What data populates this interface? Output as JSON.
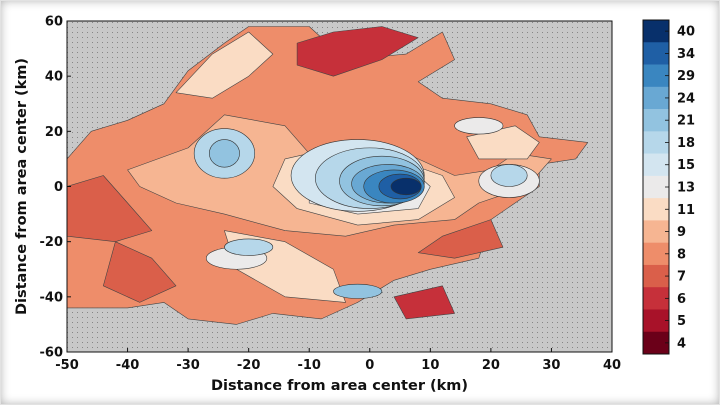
{
  "chart_data": {
    "type": "heatmap",
    "subtype": "filled-contour",
    "title": "",
    "xlabel": "Distance from area center (km)",
    "ylabel": "Distance from area center (km)",
    "xlim": [
      -50,
      40
    ],
    "ylim": [
      -60,
      60
    ],
    "x_ticks": [
      "-50",
      "-40",
      "-30",
      "-20",
      "-10",
      "0",
      "10",
      "20",
      "30",
      "40"
    ],
    "y_ticks": [
      "60",
      "40",
      "20",
      "0",
      "-20",
      "-40",
      "-60"
    ],
    "colorbar": {
      "levels": [
        "40",
        "34",
        "29",
        "24",
        "21",
        "18",
        "15",
        "13",
        "11",
        "9",
        "8",
        "7",
        "6",
        "5",
        "4"
      ],
      "colors": [
        "#08306b",
        "#1f5fa5",
        "#3a86c0",
        "#69a8d3",
        "#92c3e0",
        "#b6d7ea",
        "#d3e5f0",
        "#ebeaea",
        "#fadcc4",
        "#f6b592",
        "#ee8d6a",
        "#da5f4a",
        "#c6303a",
        "#a81229",
        "#6b0019"
      ]
    },
    "no_data_color": "#c8c8c8",
    "peak": {
      "x": -1,
      "y": 0,
      "value": 40
    },
    "grid": false
  }
}
